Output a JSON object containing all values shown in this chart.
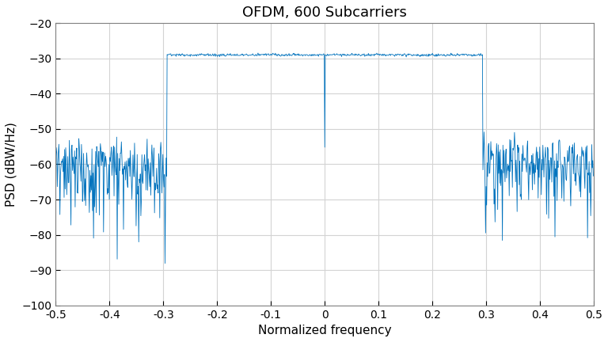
{
  "title": "OFDM, 600 Subcarriers",
  "xlabel": "Normalized frequency",
  "ylabel": "PSD (dBW/Hz)",
  "xlim": [
    -0.5,
    0.5
  ],
  "ylim": [
    -100,
    -20
  ],
  "yticks": [
    -100,
    -90,
    -80,
    -70,
    -60,
    -50,
    -40,
    -30,
    -20
  ],
  "xticks": [
    -0.5,
    -0.4,
    -0.3,
    -0.2,
    -0.1,
    0.0,
    0.1,
    0.2,
    0.3,
    0.4,
    0.5
  ],
  "line_color": "#0072BD",
  "background_color": "#FFFFFF",
  "grid_color": "#D3D3D3",
  "nfft": 1024,
  "n_subcarriers": 600,
  "noise_floor_dB": -60,
  "signal_level_dB": -29,
  "seed": 3,
  "title_fontsize": 13,
  "label_fontsize": 11,
  "linewidth": 0.6
}
